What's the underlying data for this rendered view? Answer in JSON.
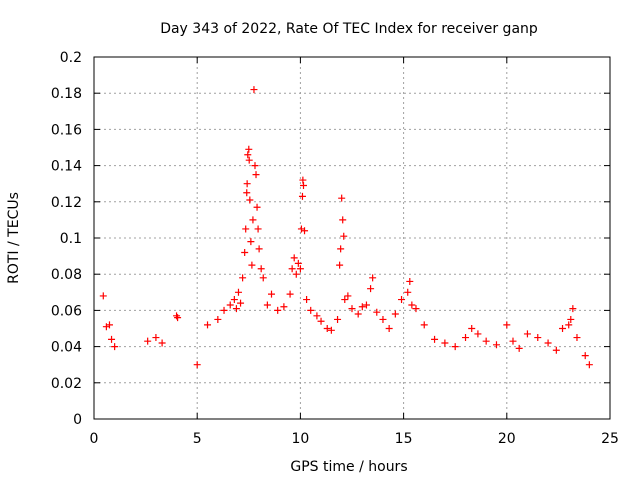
{
  "chart_data": {
    "type": "scatter",
    "title": "Day 343 of 2022, Rate Of TEC Index for receiver ganp",
    "xlabel": "GPS time / hours",
    "ylabel": "ROTI / TECUs",
    "xlim": [
      0,
      25
    ],
    "ylim": [
      0,
      0.2
    ],
    "x_ticks": [
      0,
      5,
      10,
      15,
      20,
      25
    ],
    "x_tick_labels": [
      "0",
      "5",
      "10",
      "15",
      "20",
      "25"
    ],
    "y_ticks": [
      0,
      0.02,
      0.04,
      0.06,
      0.08,
      0.1,
      0.12,
      0.14,
      0.16,
      0.18,
      0.2
    ],
    "y_tick_labels": [
      "0",
      "0.02",
      "0.04",
      "0.06",
      "0.08",
      "0.1",
      "0.12",
      "0.14",
      "0.16",
      "0.18",
      "0.2"
    ],
    "grid": true,
    "legend": "none",
    "marker": "+",
    "color": "#ff0000",
    "series": [
      {
        "points": [
          [
            0.45,
            0.068
          ],
          [
            0.6,
            0.051
          ],
          [
            0.75,
            0.052
          ],
          [
            0.85,
            0.044
          ],
          [
            1.0,
            0.04
          ],
          [
            2.6,
            0.043
          ],
          [
            3.0,
            0.045
          ],
          [
            3.3,
            0.042
          ],
          [
            4.0,
            0.057
          ],
          [
            4.05,
            0.056
          ],
          [
            5.0,
            0.03
          ],
          [
            5.5,
            0.052
          ],
          [
            6.0,
            0.055
          ],
          [
            6.3,
            0.06
          ],
          [
            6.6,
            0.063
          ],
          [
            6.8,
            0.066
          ],
          [
            6.9,
            0.061
          ],
          [
            7.0,
            0.07
          ],
          [
            7.1,
            0.064
          ],
          [
            7.2,
            0.078
          ],
          [
            7.3,
            0.092
          ],
          [
            7.35,
            0.105
          ],
          [
            7.4,
            0.125
          ],
          [
            7.42,
            0.13
          ],
          [
            7.45,
            0.146
          ],
          [
            7.5,
            0.149
          ],
          [
            7.52,
            0.143
          ],
          [
            7.55,
            0.121
          ],
          [
            7.6,
            0.098
          ],
          [
            7.65,
            0.085
          ],
          [
            7.7,
            0.11
          ],
          [
            7.75,
            0.182
          ],
          [
            7.8,
            0.14
          ],
          [
            7.85,
            0.135
          ],
          [
            7.9,
            0.117
          ],
          [
            7.95,
            0.105
          ],
          [
            8.0,
            0.094
          ],
          [
            8.1,
            0.083
          ],
          [
            8.2,
            0.078
          ],
          [
            8.4,
            0.063
          ],
          [
            8.6,
            0.069
          ],
          [
            8.9,
            0.06
          ],
          [
            9.2,
            0.062
          ],
          [
            9.5,
            0.069
          ],
          [
            9.6,
            0.083
          ],
          [
            9.7,
            0.089
          ],
          [
            9.8,
            0.08
          ],
          [
            9.9,
            0.086
          ],
          [
            10.0,
            0.083
          ],
          [
            10.05,
            0.105
          ],
          [
            10.1,
            0.123
          ],
          [
            10.12,
            0.132
          ],
          [
            10.15,
            0.129
          ],
          [
            10.2,
            0.104
          ],
          [
            10.3,
            0.066
          ],
          [
            10.5,
            0.06
          ],
          [
            10.8,
            0.057
          ],
          [
            11.0,
            0.054
          ],
          [
            11.3,
            0.05
          ],
          [
            11.5,
            0.049
          ],
          [
            11.8,
            0.055
          ],
          [
            11.9,
            0.085
          ],
          [
            11.95,
            0.094
          ],
          [
            12.0,
            0.122
          ],
          [
            12.05,
            0.11
          ],
          [
            12.1,
            0.101
          ],
          [
            12.15,
            0.066
          ],
          [
            12.3,
            0.068
          ],
          [
            12.5,
            0.061
          ],
          [
            12.8,
            0.058
          ],
          [
            13.0,
            0.062
          ],
          [
            13.2,
            0.063
          ],
          [
            13.4,
            0.072
          ],
          [
            13.5,
            0.078
          ],
          [
            13.7,
            0.059
          ],
          [
            14.0,
            0.055
          ],
          [
            14.3,
            0.05
          ],
          [
            14.6,
            0.058
          ],
          [
            14.9,
            0.066
          ],
          [
            15.2,
            0.07
          ],
          [
            15.3,
            0.076
          ],
          [
            15.4,
            0.063
          ],
          [
            15.6,
            0.061
          ],
          [
            16.0,
            0.052
          ],
          [
            16.5,
            0.044
          ],
          [
            17.0,
            0.042
          ],
          [
            17.5,
            0.04
          ],
          [
            18.0,
            0.045
          ],
          [
            18.3,
            0.05
          ],
          [
            18.6,
            0.047
          ],
          [
            19.0,
            0.043
          ],
          [
            19.5,
            0.041
          ],
          [
            20.0,
            0.052
          ],
          [
            20.3,
            0.043
          ],
          [
            20.6,
            0.039
          ],
          [
            21.0,
            0.047
          ],
          [
            21.5,
            0.045
          ],
          [
            22.0,
            0.042
          ],
          [
            22.4,
            0.038
          ],
          [
            22.7,
            0.05
          ],
          [
            23.0,
            0.052
          ],
          [
            23.1,
            0.055
          ],
          [
            23.2,
            0.061
          ],
          [
            23.4,
            0.045
          ],
          [
            23.8,
            0.035
          ],
          [
            24.0,
            0.03
          ]
        ]
      }
    ]
  }
}
